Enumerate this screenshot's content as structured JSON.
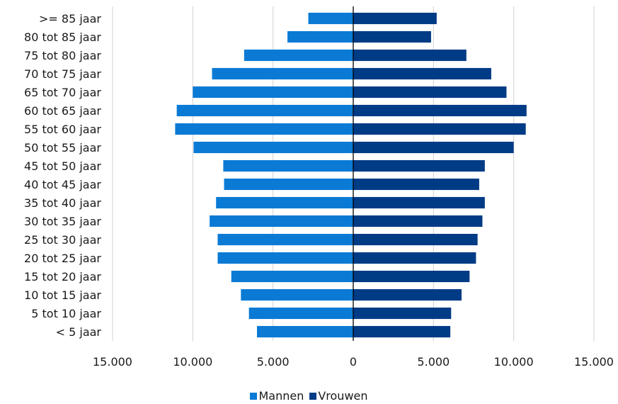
{
  "chart_data": {
    "type": "bar",
    "orientation": "horizontal-population-pyramid",
    "categories": [
      ">= 85 jaar",
      "80 tot 85 jaar",
      "75 tot 80 jaar",
      "70 tot 75 jaar",
      "65 tot 70 jaar",
      "60 tot 65 jaar",
      "55 tot 60 jaar",
      "50 tot 55 jaar",
      "45 tot 50 jaar",
      "40 tot 45 jaar",
      "35 tot 40 jaar",
      "30 tot 35 jaar",
      "25 tot 30 jaar",
      "20 tot 25 jaar",
      "15 tot 20 jaar",
      "10 tot 15 jaar",
      "5 tot 10 jaar",
      "< 5 jaar"
    ],
    "series": [
      {
        "name": "Mannen",
        "color": "#0a7ad5",
        "values": [
          2800,
          4100,
          6800,
          8800,
          10000,
          11000,
          11100,
          9950,
          8100,
          8050,
          8550,
          8950,
          8450,
          8450,
          7600,
          7000,
          6500,
          6000
        ]
      },
      {
        "name": "Vrouwen",
        "color": "#003b86",
        "values": [
          5200,
          4850,
          7050,
          8600,
          9550,
          10800,
          10750,
          10000,
          8200,
          7850,
          8200,
          8050,
          7750,
          7650,
          7250,
          6750,
          6100,
          6050
        ]
      }
    ],
    "xlim": [
      -15000,
      15000
    ],
    "xticks": [
      -15000,
      -10000,
      -5000,
      0,
      5000,
      10000,
      15000
    ],
    "xtick_labels": [
      "15.000",
      "10.000",
      "5.000",
      "0",
      "5.000",
      "10.000",
      "15.000"
    ],
    "grid": true,
    "legend_position": "bottom"
  }
}
